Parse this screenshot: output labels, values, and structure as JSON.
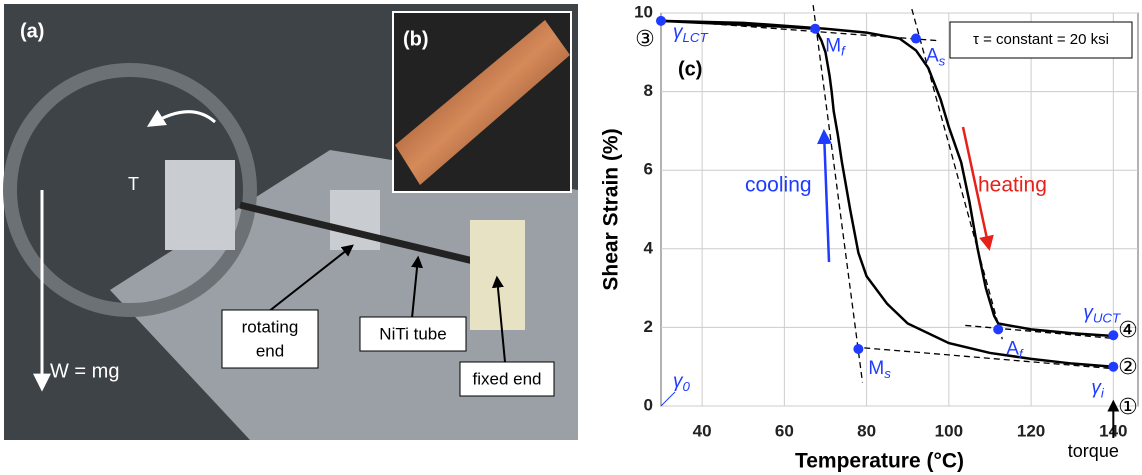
{
  "photo": {
    "label_a": "(a)",
    "label_b": "(b)",
    "torque_symbol": "T",
    "weight": "W = mg",
    "rotating_end": [
      "rotating",
      "end"
    ],
    "tube": "NiTi tube",
    "fixed_end": "fixed end"
  },
  "chart_data": {
    "type": "line",
    "panel_label": "(c)",
    "xlabel": "Temperature (°C)",
    "ylabel": "Shear Strain (%)",
    "xlim": [
      30,
      146
    ],
    "ylim": [
      0,
      10
    ],
    "xticks": [
      40,
      60,
      80,
      100,
      120,
      140
    ],
    "yticks": [
      0,
      2,
      4,
      6,
      8,
      10
    ],
    "grid": true,
    "series": [
      {
        "color": "#000000",
        "x": [
          140,
          130,
          120,
          110,
          100,
          90,
          85,
          80,
          78,
          76,
          74,
          73,
          72,
          71.5,
          71,
          70.5,
          70,
          69,
          67.5,
          60,
          50,
          40,
          30
        ],
        "values": [
          1.0,
          1.08,
          1.2,
          1.35,
          1.6,
          2.1,
          2.6,
          3.3,
          3.9,
          5.0,
          6.2,
          6.9,
          7.5,
          8.0,
          8.4,
          8.7,
          9.0,
          9.3,
          9.6,
          9.65,
          9.7,
          9.75,
          9.8
        ]
      },
      {
        "color": "#000000",
        "x": [
          30,
          50,
          70,
          80,
          88,
          92,
          95,
          98,
          100,
          103,
          105,
          107,
          109,
          111,
          112,
          120,
          130,
          140
        ],
        "values": [
          9.8,
          9.75,
          9.6,
          9.5,
          9.35,
          9.05,
          8.6,
          7.8,
          7.1,
          6.2,
          5.2,
          4.0,
          3.0,
          2.3,
          2.1,
          1.95,
          1.85,
          1.78
        ]
      }
    ],
    "guides": [
      {
        "x": [
          67,
          79
        ],
        "values": [
          10.2,
          0.6
        ]
      },
      {
        "x": [
          30,
          97
        ],
        "values": [
          9.82,
          9.3
        ]
      },
      {
        "x": [
          91,
          113
        ],
        "values": [
          10.1,
          1.7
        ]
      },
      {
        "x": [
          77,
          140
        ],
        "values": [
          1.5,
          0.95
        ]
      },
      {
        "x": [
          104,
          140
        ],
        "values": [
          2.05,
          1.72
        ]
      }
    ],
    "points": {
      "color": "#1f3bff",
      "x": [
        30,
        67.5,
        92,
        112,
        78,
        140,
        140
      ],
      "values": [
        9.8,
        9.6,
        9.35,
        1.95,
        1.45,
        1.0,
        1.8
      ],
      "labels": [
        {
          "text": "γ",
          "sub": "LCT"
        },
        {
          "text": "M",
          "sub": "f"
        },
        {
          "text": "A",
          "sub": "s"
        },
        {
          "text": "A",
          "sub": "f"
        },
        {
          "text": "M",
          "sub": "s"
        },
        {
          "text": "γ",
          "sub": "i"
        },
        {
          "text": "γ",
          "sub": "UCT"
        }
      ]
    },
    "origin_label": {
      "text": "γ",
      "sub": "0"
    },
    "annotations": [
      {
        "text": "cooling",
        "color": "#1f3bff"
      },
      {
        "text": "heating",
        "color": "#e8201a"
      }
    ],
    "condition": "τ = constant = 20 ksi",
    "stages": [
      "③",
      "④",
      "②",
      "①"
    ],
    "torque_label": "torque"
  }
}
